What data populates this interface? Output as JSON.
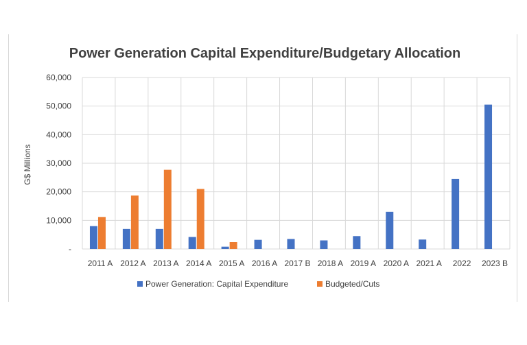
{
  "chart_data": {
    "type": "bar",
    "title": "Power Generation Capital Expenditure/Budgetary Allocation",
    "ylabel": "G$ Millions",
    "xlabel": "",
    "ylim": [
      0,
      60000
    ],
    "yticks": [
      "-",
      "10,000",
      "20,000",
      "30,000",
      "40,000",
      "50,000",
      "60,000"
    ],
    "grid": true,
    "legend_position": "bottom",
    "categories": [
      "2011 A",
      "2012 A",
      "2013 A",
      "2014 A",
      "2015 A",
      "2016 A",
      "2017 B",
      "2018 A",
      "2019 A",
      "2020 A",
      "2021 A",
      "2022",
      "2023 B"
    ],
    "series": [
      {
        "name": "Power Generation: Capital Expenditure",
        "color": "#4472c4",
        "values": [
          8000,
          7000,
          7000,
          4200,
          800,
          3200,
          3500,
          3000,
          4500,
          13000,
          3300,
          24500,
          50500
        ]
      },
      {
        "name": "Budgeted/Cuts",
        "color": "#ed7d31",
        "values": [
          11200,
          18700,
          27700,
          21000,
          2400,
          null,
          null,
          null,
          null,
          null,
          null,
          null,
          null
        ]
      }
    ]
  }
}
